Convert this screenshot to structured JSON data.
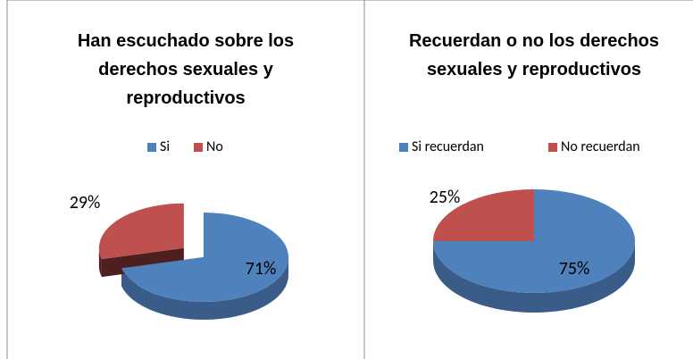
{
  "chart_data": [
    {
      "type": "pie",
      "title": "Han escuchado sobre los derechos sexuales y reproductivos",
      "categories": [
        "Si",
        "No"
      ],
      "values": [
        71,
        29
      ],
      "value_labels": [
        "71%",
        "29%"
      ],
      "colors": [
        "#4f81bd",
        "#c0504d"
      ],
      "explode": [
        false,
        true
      ],
      "legend": "top"
    },
    {
      "type": "pie",
      "title": "Recuerdan o no los derechos sexuales y reproductivos",
      "categories": [
        "Si recuerdan",
        "No recuerdan"
      ],
      "values": [
        75,
        25
      ],
      "value_labels": [
        "75%",
        "25%"
      ],
      "colors": [
        "#4f81bd",
        "#c0504d"
      ],
      "explode": [
        false,
        false
      ],
      "legend": "top"
    }
  ]
}
